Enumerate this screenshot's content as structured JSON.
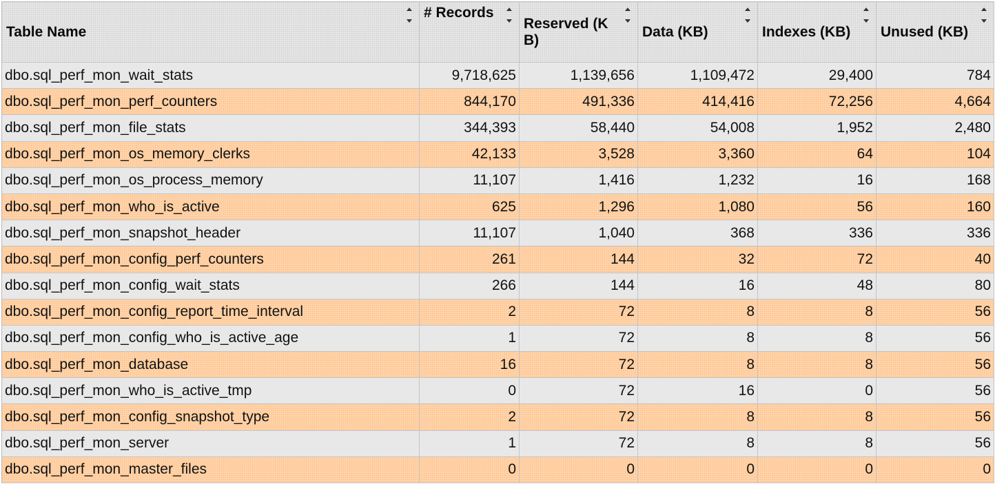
{
  "columns": [
    {
      "key": "name",
      "label": "Table Name"
    },
    {
      "key": "records",
      "label": "# Records"
    },
    {
      "key": "reserved",
      "label": "Reserved (KB)"
    },
    {
      "key": "data",
      "label": "Data (KB)"
    },
    {
      "key": "indexes",
      "label": "Indexes (KB)"
    },
    {
      "key": "unused",
      "label": "Unused (KB)"
    }
  ],
  "rows": [
    [
      "dbo.sql_perf_mon_wait_stats",
      "9,718,625",
      "1,139,656",
      "1,109,472",
      "29,400",
      "784"
    ],
    [
      "dbo.sql_perf_mon_perf_counters",
      "844,170",
      "491,336",
      "414,416",
      "72,256",
      "4,664"
    ],
    [
      "dbo.sql_perf_mon_file_stats",
      "344,393",
      "58,440",
      "54,008",
      "1,952",
      "2,480"
    ],
    [
      "dbo.sql_perf_mon_os_memory_clerks",
      "42,133",
      "3,528",
      "3,360",
      "64",
      "104"
    ],
    [
      "dbo.sql_perf_mon_os_process_memory",
      "11,107",
      "1,416",
      "1,232",
      "16",
      "168"
    ],
    [
      "dbo.sql_perf_mon_who_is_active",
      "625",
      "1,296",
      "1,080",
      "56",
      "160"
    ],
    [
      "dbo.sql_perf_mon_snapshot_header",
      "11,107",
      "1,040",
      "368",
      "336",
      "336"
    ],
    [
      "dbo.sql_perf_mon_config_perf_counters",
      "261",
      "144",
      "32",
      "72",
      "40"
    ],
    [
      "dbo.sql_perf_mon_config_wait_stats",
      "266",
      "144",
      "16",
      "48",
      "80"
    ],
    [
      "dbo.sql_perf_mon_config_report_time_interval",
      "2",
      "72",
      "8",
      "8",
      "56"
    ],
    [
      "dbo.sql_perf_mon_config_who_is_active_age",
      "1",
      "72",
      "8",
      "8",
      "56"
    ],
    [
      "dbo.sql_perf_mon_database",
      "16",
      "72",
      "8",
      "8",
      "56"
    ],
    [
      "dbo.sql_perf_mon_who_is_active_tmp",
      "0",
      "72",
      "16",
      "0",
      "56"
    ],
    [
      "dbo.sql_perf_mon_config_snapshot_type",
      "2",
      "72",
      "8",
      "8",
      "56"
    ],
    [
      "dbo.sql_perf_mon_server",
      "1",
      "72",
      "8",
      "8",
      "56"
    ],
    [
      "dbo.sql_perf_mon_master_files",
      "0",
      "0",
      "0",
      "0",
      "0"
    ]
  ],
  "colors": {
    "header_bg": "#dadada",
    "row_even": "#e8e8e8",
    "row_odd": "#ffc997"
  },
  "icons": {
    "sort": "sort-arrows-icon"
  }
}
